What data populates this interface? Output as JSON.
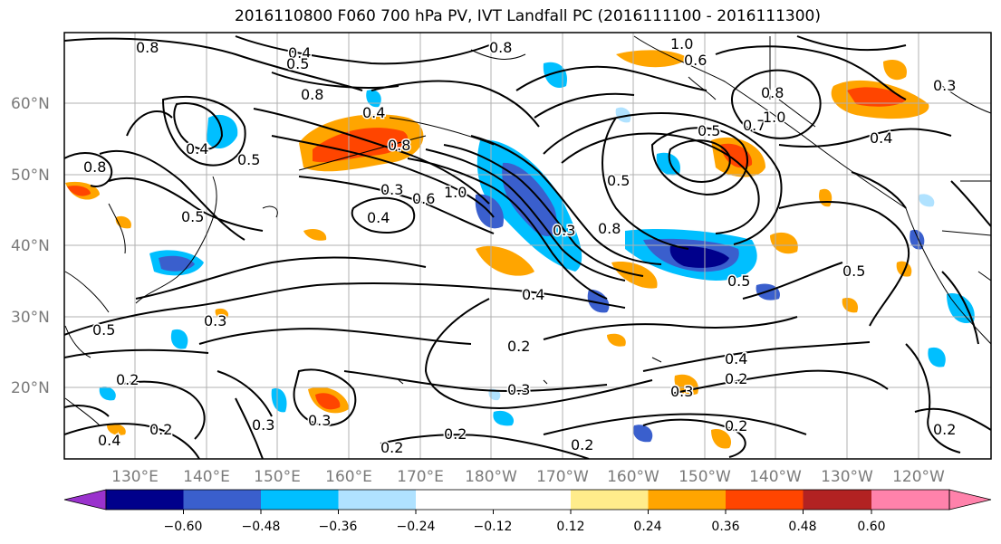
{
  "title": "2016110800 F060 700 hPa PV, IVT Landfall PC (2016111100 - 2016111300)",
  "lat_labels": [
    "60°N",
    "50°N",
    "40°N",
    "30°N",
    "20°N"
  ],
  "lon_labels": [
    "130°E",
    "140°E",
    "150°E",
    "160°E",
    "170°E",
    "180°W",
    "170°W",
    "160°W",
    "150°W",
    "140°W",
    "130°W",
    "120°W"
  ],
  "colorbar": {
    "colors": [
      "#9a32cd",
      "#00008b",
      "#3a5fcd",
      "#00bfff",
      "#b0e2ff",
      "#ffffff",
      "#ffec8b",
      "#ffa500",
      "#ff4500",
      "#b22222",
      "#ff82ab"
    ],
    "tick_labels": [
      "−0.60",
      "−0.48",
      "−0.36",
      "−0.24",
      "−0.12",
      "0.12",
      "0.24",
      "0.36",
      "0.48",
      "0.60"
    ]
  },
  "contour_labels": [
    "0.8",
    "0.4",
    "0.5",
    "0.8",
    "0.8",
    "1.0",
    "0.6",
    "0.3",
    "0.4",
    "0.5",
    "0.8",
    "0.4",
    "0.5",
    "0.3",
    "0.6",
    "1.0",
    "0.8",
    "0.8",
    "0.5",
    "0.7",
    "1.0",
    "0.8",
    "0.4",
    "0.4",
    "0.5",
    "0.5",
    "0.4",
    "0.3",
    "0.3",
    "0.2",
    "0.3",
    "0.2",
    "0.2",
    "0.2",
    "0.2",
    "0.3",
    "0.2",
    "0.4",
    "0.2",
    "0.5",
    "0.2",
    "0.3",
    "0.4",
    "0.2",
    "0.3",
    "0.5"
  ]
}
